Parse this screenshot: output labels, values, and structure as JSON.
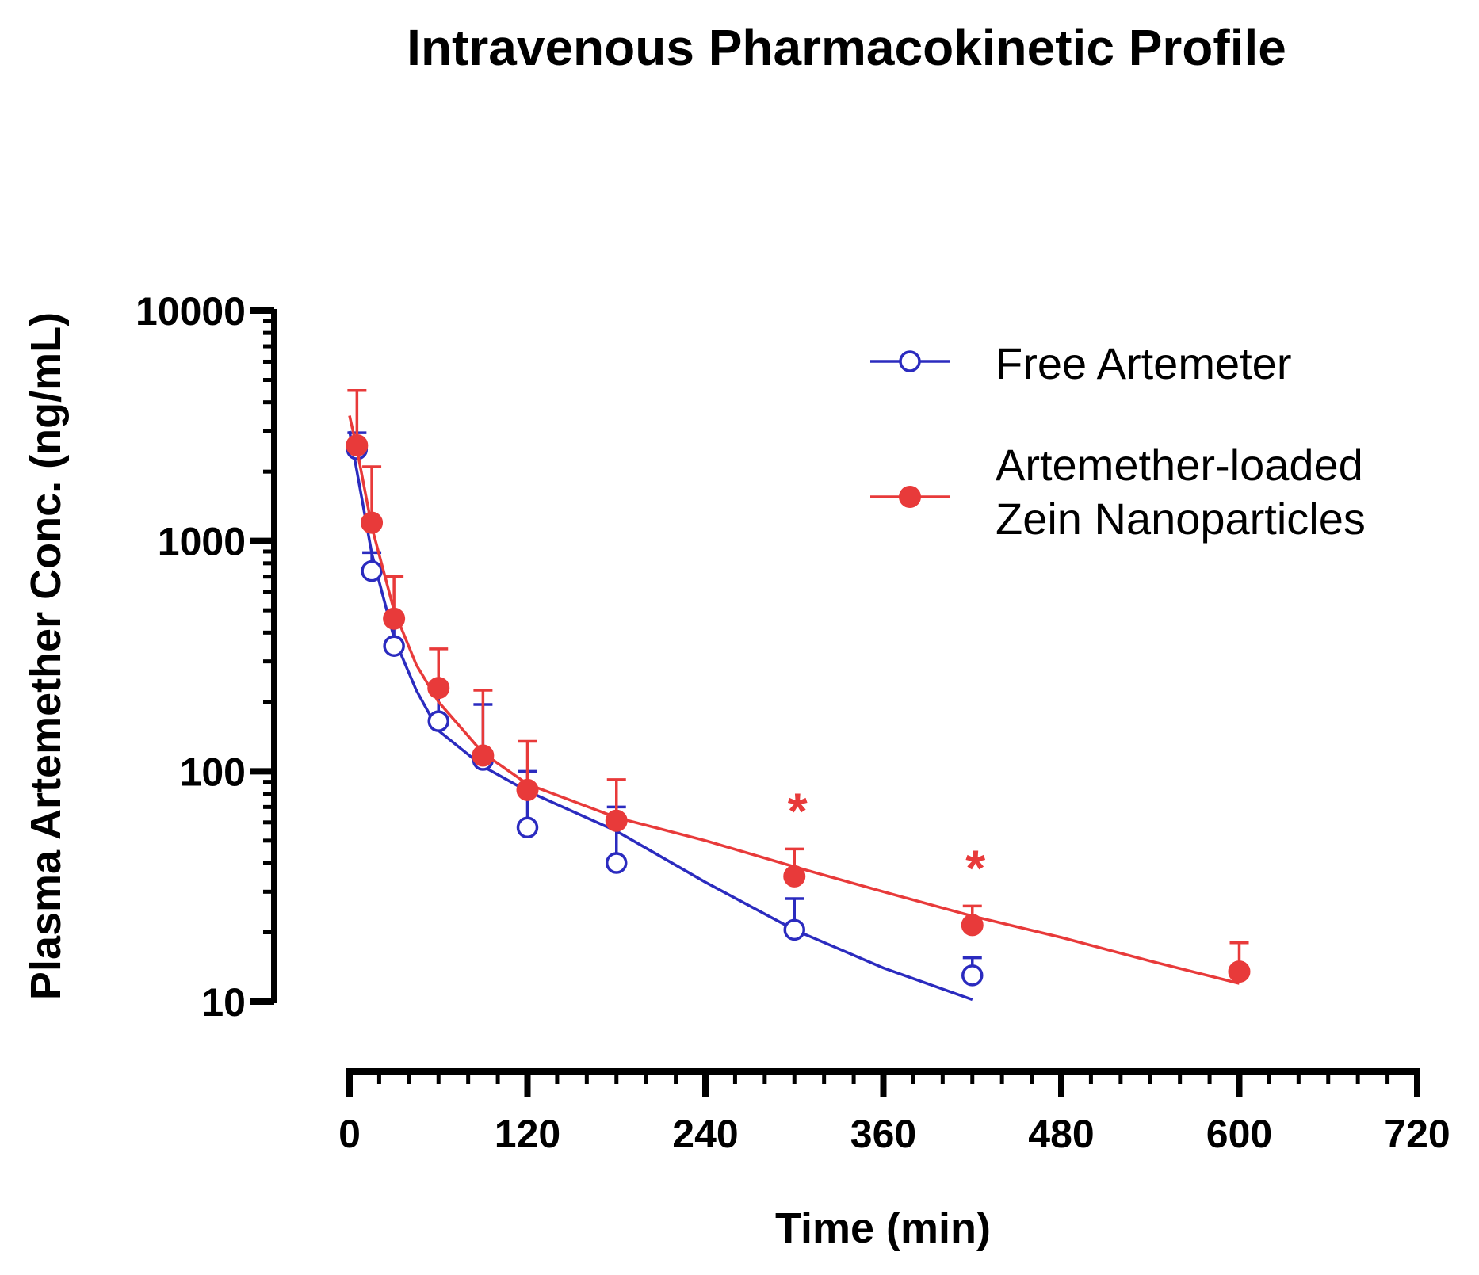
{
  "chart_data": {
    "type": "scatter",
    "title": "Intravenous Pharmacokinetic Profile",
    "xlabel": "Time (min)",
    "ylabel": "Plasma Artemether Conc. (ng/mL)",
    "xlim": [
      0,
      720
    ],
    "ylim": [
      10,
      10000
    ],
    "yscale": "log",
    "x_ticks": [
      0,
      120,
      240,
      360,
      480,
      600,
      720
    ],
    "x_tick_labels": [
      "0",
      "120",
      "240",
      "360",
      "480",
      "600",
      "720"
    ],
    "y_ticks": [
      10,
      100,
      1000,
      10000
    ],
    "y_tick_labels": [
      "10",
      "100",
      "1000",
      "10000"
    ],
    "legend_position": "top-right",
    "series": [
      {
        "name": "Free Artemeter",
        "color": "#2b2bbf",
        "marker": "open-circle",
        "x": [
          5,
          15,
          30,
          60,
          90,
          120,
          180,
          300,
          420
        ],
        "y": [
          2500,
          740,
          350,
          165,
          112,
          57,
          40,
          20.5,
          13
        ],
        "err_upper": [
          2950,
          890,
          470,
          235,
          195,
          100,
          70,
          28,
          15.5
        ],
        "fit": {
          "x": [
            0,
            5,
            15,
            30,
            45,
            60,
            90,
            120,
            180,
            240,
            300,
            360,
            420
          ],
          "y": [
            3000,
            2000,
            880,
            380,
            225,
            150,
            105,
            82,
            55,
            33,
            20.5,
            14,
            10.2
          ]
        }
      },
      {
        "name": "Artemether-loaded Zein Nanoparticles",
        "color": "#e83a3a",
        "marker": "filled-circle",
        "x": [
          5,
          15,
          30,
          60,
          90,
          120,
          180,
          300,
          420,
          600
        ],
        "y": [
          2600,
          1200,
          460,
          230,
          117,
          83,
          61,
          35,
          21.5,
          13.5
        ],
        "err_upper": [
          4500,
          2100,
          700,
          340,
          225,
          135,
          92,
          46,
          26,
          18
        ],
        "significance": [
          {
            "x": 300,
            "label": "*"
          },
          {
            "x": 420,
            "label": "*"
          }
        ],
        "fit": {
          "x": [
            0,
            5,
            15,
            30,
            45,
            60,
            90,
            120,
            180,
            240,
            300,
            360,
            420,
            480,
            540,
            600
          ],
          "y": [
            3500,
            2500,
            1150,
            500,
            290,
            200,
            120,
            88,
            63,
            50,
            38.5,
            30,
            23.5,
            19,
            15,
            12
          ]
        }
      }
    ]
  }
}
